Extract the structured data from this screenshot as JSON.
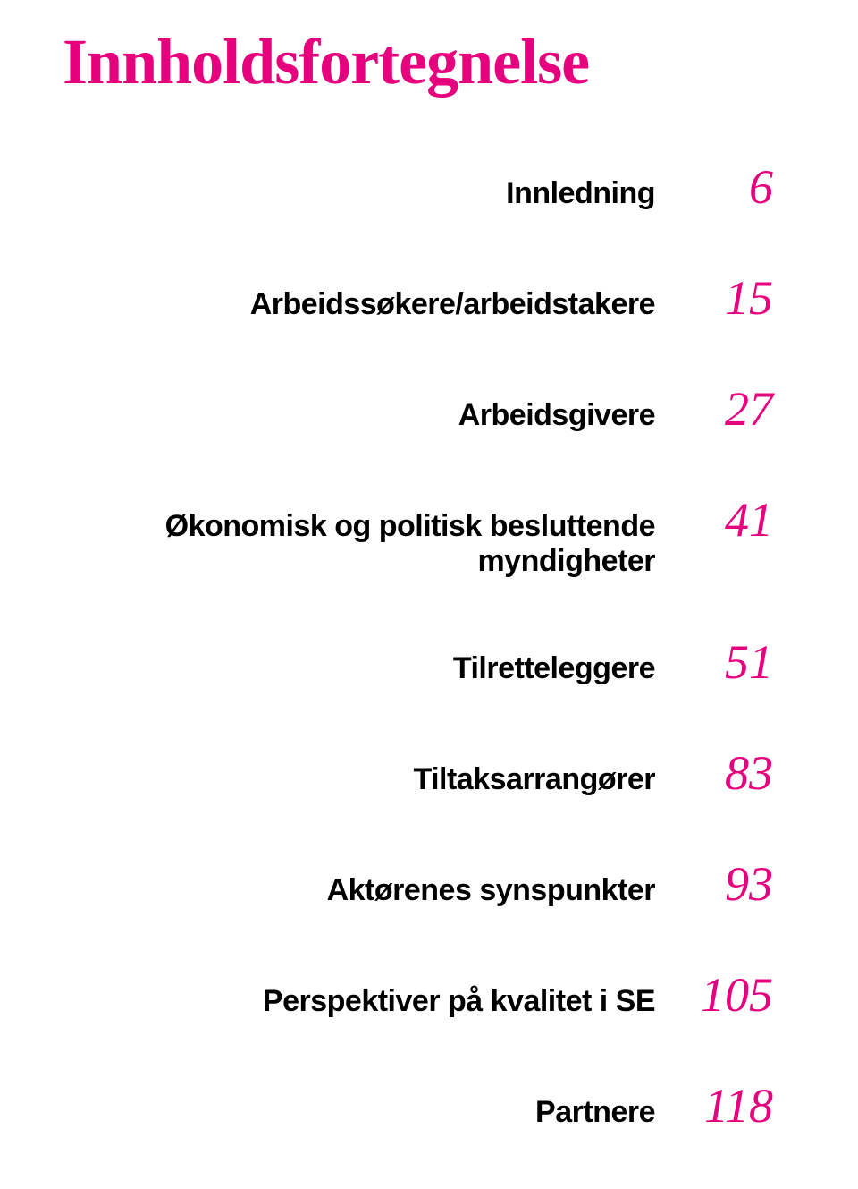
{
  "title": "Innholdsfortegnelse",
  "colors": {
    "accent": "#e6007e",
    "text": "#000000",
    "background": "#ffffff"
  },
  "typography": {
    "title_fontsize": 72,
    "label_fontsize": 34,
    "page_fontsize": 54
  },
  "toc": [
    {
      "label": "Innledning",
      "page": "6"
    },
    {
      "label": "Arbeidssøkere/arbeidstakere",
      "page": "15"
    },
    {
      "label": "Arbeidsgivere",
      "page": "27"
    },
    {
      "label": "Økonomisk og politisk besluttende myndigheter",
      "page": "41"
    },
    {
      "label": "Tilretteleggere",
      "page": "51"
    },
    {
      "label": "Tiltaksarrangører",
      "page": "83"
    },
    {
      "label": "Aktørenes synspunkter",
      "page": "93"
    },
    {
      "label": "Perspektiver på kvalitet i SE",
      "page": "105"
    },
    {
      "label": "Partnere",
      "page": "118"
    }
  ]
}
